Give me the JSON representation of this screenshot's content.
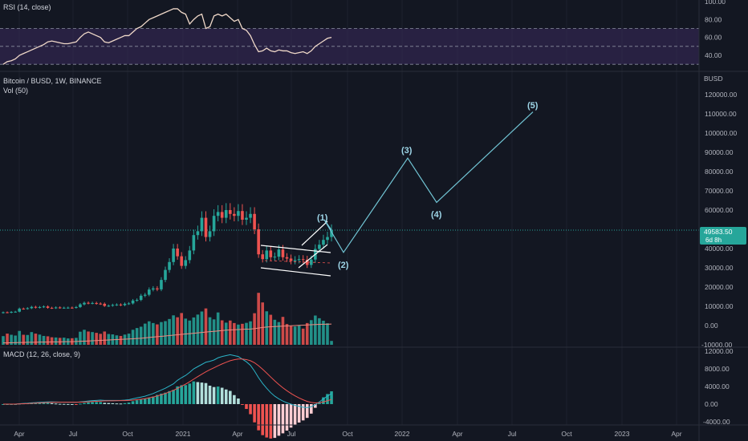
{
  "colors": {
    "background": "#131722",
    "grid": "#1e222d",
    "up": "#26a69a",
    "down": "#ef5350",
    "rsi_line": "#f0d9c9",
    "rsi_band": "#3b2a5c",
    "macd_line": "#2bb3c7",
    "signal_line": "#ef5350",
    "wave": "#72c6d6",
    "price_tag": "#26a69a"
  },
  "rsi_panel": {
    "title": "RSI (14, close)",
    "axis_labels": [
      "100.00",
      "80.00",
      "60.00",
      "40.00"
    ]
  },
  "price_panel": {
    "title": "Bitcoin / BUSD, 1W, BINANCE",
    "volume_title": "Vol (50)",
    "axis_top_label": "BUSD",
    "axis_labels": [
      "120000.00",
      "110000.00",
      "100000.00",
      "90000.00",
      "80000.00",
      "70000.00",
      "60000.00",
      "50000.00",
      "40000.00",
      "30000.00",
      "20000.00",
      "10000.00",
      "0.00",
      "-10000.00"
    ],
    "price_tag": {
      "value": "49583.50",
      "countdown": "6d 8h"
    }
  },
  "macd_panel": {
    "title": "MACD (12, 26, close, 9)",
    "axis_labels": [
      "12000.00",
      "8000.00",
      "4000.00",
      "0.00",
      "-4000.00"
    ]
  },
  "time_axis": {
    "labels": [
      "Apr",
      "Jul",
      "Oct",
      "2021",
      "Apr",
      "Jul",
      "Oct",
      "2022",
      "Apr",
      "Jul",
      "Oct",
      "2023",
      "Apr"
    ]
  },
  "wave_labels": [
    "(1)",
    "(2)",
    "(3)",
    "(4)",
    "(5)"
  ],
  "chart_data": {
    "type": "candlestick",
    "symbol": "Bitcoin / BUSD",
    "interval": "1W",
    "exchange": "BINANCE",
    "last_price": 49583.5,
    "price_range": [
      -10000,
      130000
    ],
    "candles": [
      [
        6500,
        6900
      ],
      [
        6900,
        6700
      ],
      [
        6700,
        7100
      ],
      [
        7100,
        7200
      ],
      [
        7200,
        8800
      ],
      [
        8800,
        8700
      ],
      [
        8700,
        9000
      ],
      [
        9000,
        9700
      ],
      [
        9700,
        9300
      ],
      [
        9300,
        9600
      ],
      [
        9600,
        9900
      ],
      [
        9900,
        9200
      ],
      [
        9200,
        9100
      ],
      [
        9100,
        9400
      ],
      [
        9400,
        9200
      ],
      [
        9200,
        9250
      ],
      [
        9250,
        9300
      ],
      [
        9300,
        9250
      ],
      [
        9250,
        9600
      ],
      [
        9600,
        11000
      ],
      [
        11000,
        11800
      ],
      [
        11800,
        11600
      ],
      [
        11600,
        11700
      ],
      [
        11700,
        11400
      ],
      [
        11400,
        11300
      ],
      [
        11300,
        10200
      ],
      [
        10200,
        10300
      ],
      [
        10300,
        10700
      ],
      [
        10700,
        10900
      ],
      [
        10900,
        10600
      ],
      [
        10600,
        11300
      ],
      [
        11300,
        11500
      ],
      [
        11500,
        13000
      ],
      [
        13000,
        13300
      ],
      [
        13300,
        15500
      ],
      [
        15500,
        16000
      ],
      [
        16000,
        18700
      ],
      [
        18700,
        19300
      ],
      [
        19300,
        18800
      ],
      [
        18800,
        23700
      ],
      [
        23700,
        28900
      ],
      [
        28900,
        33000
      ],
      [
        33000,
        40000
      ],
      [
        40000,
        36000
      ],
      [
        36000,
        31000
      ],
      [
        31000,
        34000
      ],
      [
        34000,
        39000
      ],
      [
        39000,
        47000
      ],
      [
        47000,
        49000
      ],
      [
        49000,
        56000
      ],
      [
        56000,
        46000
      ],
      [
        46000,
        49000
      ],
      [
        49000,
        57000
      ],
      [
        57000,
        59000
      ],
      [
        59000,
        56000
      ],
      [
        56000,
        60000
      ],
      [
        60000,
        58000
      ],
      [
        58000,
        57000
      ],
      [
        57000,
        59500
      ],
      [
        59500,
        55000
      ],
      [
        55000,
        56000
      ],
      [
        56000,
        58000
      ],
      [
        58000,
        50000
      ],
      [
        50000,
        37000
      ],
      [
        37000,
        34500
      ],
      [
        34500,
        39000
      ],
      [
        39000,
        35500
      ],
      [
        35500,
        35800
      ],
      [
        35800,
        39500
      ],
      [
        39500,
        35500
      ],
      [
        35500,
        34800
      ],
      [
        34800,
        33500
      ],
      [
        33500,
        34000
      ],
      [
        34000,
        34500
      ],
      [
        34500,
        34200
      ],
      [
        34200,
        31500
      ],
      [
        31500,
        34300
      ],
      [
        34300,
        39800
      ],
      [
        39800,
        42000
      ],
      [
        42000,
        44500
      ],
      [
        44500,
        46000
      ],
      [
        46000,
        49583
      ]
    ],
    "volume": [
      4500,
      5800,
      5200,
      4800,
      7200,
      5200,
      5100,
      6600,
      5800,
      5300,
      4600,
      4400,
      3900,
      3800,
      3600,
      3700,
      3300,
      3400,
      3600,
      6800,
      7800,
      6900,
      6600,
      6200,
      5700,
      6900,
      5600,
      5400,
      4900,
      4600,
      5300,
      5800,
      7800,
      8700,
      9400,
      11000,
      12200,
      11300,
      10600,
      11800,
      12300,
      13400,
      15300,
      14300,
      16500,
      13600,
      12600,
      14200,
      15700,
      17300,
      18900,
      14300,
      13200,
      16800,
      12700,
      11500,
      12600,
      11300,
      10500,
      10900,
      11400,
      12200,
      16400,
      27000,
      22000,
      17400,
      15600,
      13000,
      11800,
      14500,
      10800,
      9700,
      9500,
      10200,
      8400,
      11300,
      12800,
      15200,
      13800,
      12500,
      11200,
      2000
    ],
    "volume_ma": [
      1000,
      1000,
      1100,
      1100,
      1200,
      1200,
      1300,
      1300,
      1300,
      1400,
      1400,
      1400,
      1500,
      1500,
      1500,
      1600,
      1600,
      1600,
      1700,
      1800,
      1900,
      2000,
      2100,
      2200,
      2300,
      2400,
      2500,
      2600,
      2700,
      2800,
      2900,
      3000,
      3100,
      3300,
      3400,
      3600,
      3800,
      4000,
      4200,
      4400,
      4600,
      4800,
      5000,
      5200,
      5400,
      5600,
      5800,
      6000,
      6200,
      6400,
      6600,
      6800,
      7000,
      7200,
      7400,
      7600,
      7700,
      7800,
      7900,
      8000,
      8100,
      8200,
      8400,
      8700,
      9000,
      9200,
      9400,
      9500,
      9600,
      9700,
      9800,
      9900,
      10000,
      10100,
      10200,
      10300,
      10400,
      10500,
      10600,
      10700,
      10700,
      10800
    ],
    "rsi": [
      30,
      33,
      34,
      36,
      40,
      42,
      44,
      46,
      48,
      50,
      52,
      55,
      56,
      55,
      54,
      53,
      53,
      54,
      55,
      60,
      64,
      66,
      64,
      62,
      60,
      55,
      54,
      56,
      58,
      60,
      62,
      62,
      66,
      70,
      72,
      76,
      80,
      82,
      84,
      86,
      88,
      90,
      92,
      92,
      88,
      86,
      75,
      80,
      84,
      86,
      70,
      72,
      84,
      86,
      84,
      86,
      82,
      78,
      80,
      70,
      68,
      62,
      52,
      44,
      45,
      48,
      45,
      44,
      46,
      45,
      45,
      43,
      42,
      43,
      44,
      42,
      45,
      50,
      53,
      56,
      59,
      60
    ],
    "macd": [
      0,
      0,
      0,
      0,
      100,
      150,
      200,
      300,
      350,
      400,
      450,
      500,
      500,
      480,
      460,
      450,
      440,
      430,
      420,
      500,
      600,
      700,
      800,
      850,
      900,
      850,
      850,
      850,
      850,
      850,
      900,
      1000,
      1200,
      1400,
      1600,
      1800,
      2100,
      2400,
      2800,
      3200,
      3600,
      4100,
      4600,
      5400,
      6000,
      6500,
      7200,
      8000,
      8500,
      9000,
      9500,
      9700,
      10000,
      10500,
      10800,
      11000,
      11200,
      11000,
      10800,
      10200,
      9600,
      8800,
      7500,
      6000,
      4700,
      3600,
      2600,
      1800,
      1200,
      700,
      300,
      0,
      -300,
      -500,
      -700,
      -800,
      -600,
      -100,
      500,
      1200,
      1800,
      2400
    ],
    "signal": [
      0,
      0,
      0,
      0,
      50,
      80,
      120,
      180,
      230,
      280,
      320,
      370,
      400,
      420,
      430,
      430,
      430,
      430,
      430,
      450,
      480,
      520,
      580,
      630,
      680,
      720,
      740,
      760,
      780,
      790,
      800,
      840,
      900,
      1000,
      1120,
      1260,
      1430,
      1620,
      1850,
      2120,
      2420,
      2760,
      3130,
      3570,
      4050,
      4540,
      5080,
      5660,
      6230,
      6780,
      7330,
      7800,
      8240,
      8690,
      9110,
      9490,
      9840,
      10070,
      10220,
      10220,
      10100,
      9840,
      9380,
      8700,
      7900,
      7040,
      6150,
      5280,
      4460,
      3710,
      3030,
      2420,
      1880,
      1400,
      980,
      620,
      380,
      280,
      320,
      500,
      760,
      1080
    ],
    "wave_projection": [
      {
        "label": "(1)",
        "price": 55000
      },
      {
        "label": "(2)",
        "price": 38000
      },
      {
        "label": "(3)",
        "price": 87000
      },
      {
        "label": "(4)",
        "price": 64000
      },
      {
        "label": "(5)",
        "price": 111000
      }
    ],
    "rsi_levels": [
      70,
      50,
      30
    ],
    "x_axis": "time (weekly)",
    "y_axis": "price (BUSD)"
  }
}
